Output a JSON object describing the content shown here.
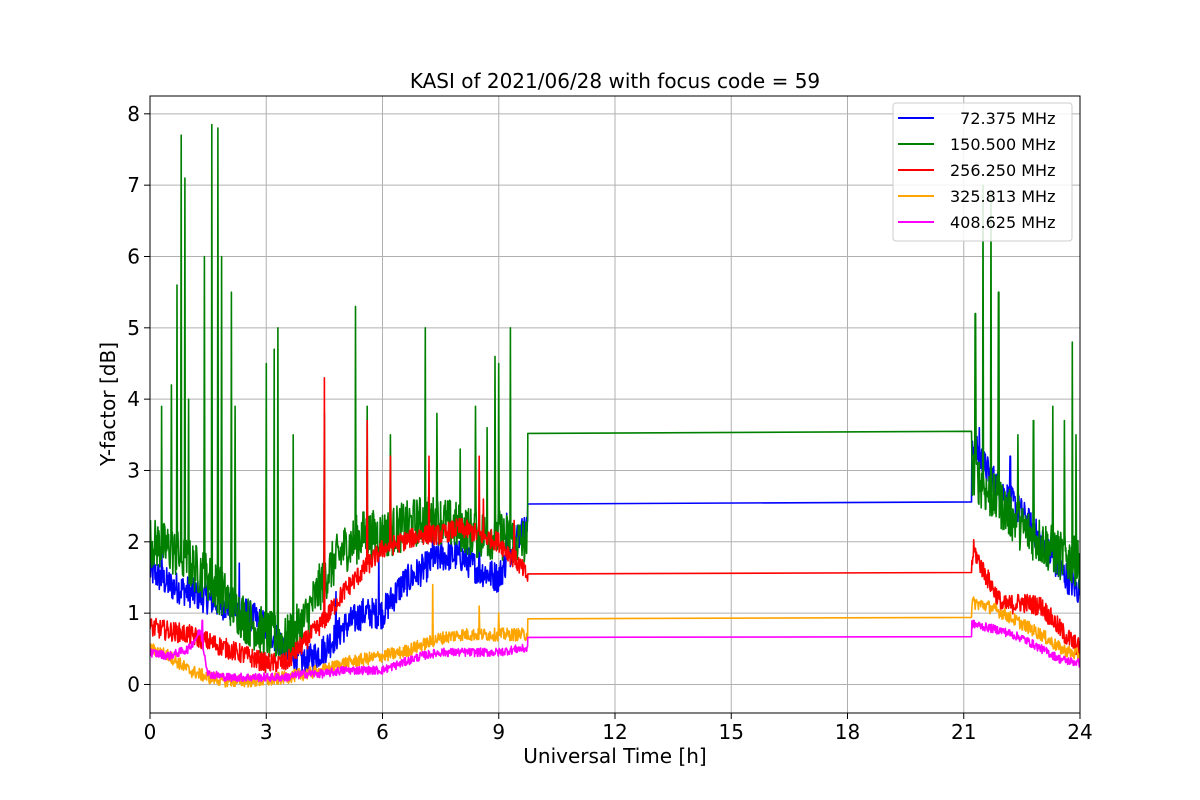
{
  "chart_data": {
    "type": "line",
    "title": "KASI of 2021/06/28 with focus code = 59",
    "xlabel": "Universal Time [h]",
    "ylabel": "Y-factor [dB]",
    "xlim": [
      0,
      24
    ],
    "ylim": [
      -0.4,
      8.25
    ],
    "xticks": [
      0,
      3,
      6,
      9,
      12,
      15,
      18,
      21,
      24
    ],
    "yticks": [
      0,
      1,
      2,
      3,
      4,
      5,
      6,
      7,
      8
    ],
    "grid": true,
    "legend_position": "top-right",
    "series": [
      {
        "name": "72.375 MHz",
        "legend_label": "  72.375 MHz",
        "color": "#0000ff",
        "points": [
          [
            0,
            1.6
          ],
          [
            0.5,
            1.4
          ],
          [
            1,
            1.3
          ],
          [
            1.5,
            1.2
          ],
          [
            2,
            1.1
          ],
          [
            2.5,
            1.0
          ],
          [
            3,
            0.8
          ],
          [
            3.5,
            0.5
          ],
          [
            4,
            0.3
          ],
          [
            4.5,
            0.5
          ],
          [
            5,
            0.8
          ],
          [
            5.5,
            1.0
          ],
          [
            6,
            1.0
          ],
          [
            6.5,
            1.4
          ],
          [
            7,
            1.6
          ],
          [
            7.5,
            1.8
          ],
          [
            8,
            1.8
          ],
          [
            8.5,
            1.6
          ],
          [
            9,
            1.5
          ],
          [
            9.5,
            2.1
          ],
          [
            9.75,
            2.2
          ],
          [
            9.76,
            2.53
          ],
          [
            21.2,
            2.56
          ],
          [
            21.21,
            3.4
          ],
          [
            21.6,
            3.0
          ],
          [
            22,
            2.7
          ],
          [
            22.5,
            2.4
          ],
          [
            23,
            2.0
          ],
          [
            23.5,
            1.6
          ],
          [
            24,
            1.3
          ]
        ],
        "spikes": [
          [
            0.3,
            1.9
          ],
          [
            2.3,
            1.7
          ],
          [
            3.3,
            1.4
          ],
          [
            4.8,
            1.3
          ],
          [
            5.9,
            1.9
          ],
          [
            7.3,
            2.2
          ],
          [
            8.5,
            2.0
          ],
          [
            9.2,
            2.4
          ],
          [
            21.4,
            3.6
          ],
          [
            22.2,
            3.2
          ],
          [
            23.3,
            2.6
          ]
        ],
        "noise": 0.22
      },
      {
        "name": "150.500 MHz",
        "legend_label": "150.500 MHz",
        "color": "#008000",
        "points": [
          [
            0,
            2.0
          ],
          [
            0.5,
            1.9
          ],
          [
            1,
            1.7
          ],
          [
            1.5,
            1.5
          ],
          [
            2,
            1.2
          ],
          [
            2.5,
            0.9
          ],
          [
            3,
            0.7
          ],
          [
            3.5,
            0.6
          ],
          [
            4,
            0.9
          ],
          [
            4.5,
            1.5
          ],
          [
            5,
            1.9
          ],
          [
            5.5,
            2.1
          ],
          [
            6,
            2.1
          ],
          [
            6.5,
            2.2
          ],
          [
            7,
            2.3
          ],
          [
            7.5,
            2.3
          ],
          [
            8,
            2.2
          ],
          [
            8.5,
            2.1
          ],
          [
            9,
            2.1
          ],
          [
            9.5,
            2.0
          ],
          [
            9.75,
            2.0
          ],
          [
            9.76,
            3.52
          ],
          [
            21.2,
            3.55
          ],
          [
            21.21,
            3.0
          ],
          [
            21.6,
            2.7
          ],
          [
            22,
            2.5
          ],
          [
            22.5,
            2.2
          ],
          [
            23,
            2.0
          ],
          [
            23.5,
            1.8
          ],
          [
            24,
            1.7
          ]
        ],
        "spikes": [
          [
            0.3,
            3.9
          ],
          [
            0.55,
            4.2
          ],
          [
            0.7,
            5.6
          ],
          [
            0.8,
            7.7
          ],
          [
            0.9,
            7.1
          ],
          [
            1.0,
            4.0
          ],
          [
            1.4,
            6.0
          ],
          [
            1.6,
            7.85
          ],
          [
            1.75,
            7.8
          ],
          [
            1.85,
            6.0
          ],
          [
            2.1,
            5.5
          ],
          [
            2.2,
            3.9
          ],
          [
            3.0,
            4.5
          ],
          [
            3.2,
            4.7
          ],
          [
            3.3,
            5.0
          ],
          [
            3.7,
            3.5
          ],
          [
            4.5,
            3.8
          ],
          [
            5.3,
            5.3
          ],
          [
            5.6,
            3.9
          ],
          [
            6.2,
            3.5
          ],
          [
            7.1,
            5.0
          ],
          [
            7.4,
            3.8
          ],
          [
            8.0,
            3.3
          ],
          [
            8.4,
            3.9
          ],
          [
            8.7,
            3.6
          ],
          [
            8.9,
            4.6
          ],
          [
            9.0,
            4.5
          ],
          [
            9.3,
            5.0
          ],
          [
            21.3,
            5.2
          ],
          [
            21.5,
            7.0
          ],
          [
            21.7,
            6.9
          ],
          [
            21.9,
            5.5
          ],
          [
            22.4,
            3.5
          ],
          [
            22.8,
            3.7
          ],
          [
            23.3,
            3.9
          ],
          [
            23.6,
            3.7
          ],
          [
            23.8,
            4.8
          ],
          [
            23.9,
            3.5
          ]
        ],
        "noise": 0.35
      },
      {
        "name": "256.250 MHz",
        "legend_label": "256.250 MHz",
        "color": "#ff0000",
        "points": [
          [
            0,
            0.8
          ],
          [
            0.5,
            0.75
          ],
          [
            1,
            0.7
          ],
          [
            1.5,
            0.6
          ],
          [
            2,
            0.5
          ],
          [
            2.5,
            0.4
          ],
          [
            3,
            0.3
          ],
          [
            3.5,
            0.3
          ],
          [
            4,
            0.6
          ],
          [
            4.5,
            0.9
          ],
          [
            5,
            1.3
          ],
          [
            5.5,
            1.6
          ],
          [
            6,
            1.9
          ],
          [
            6.5,
            2.0
          ],
          [
            7,
            2.1
          ],
          [
            7.5,
            2.1
          ],
          [
            8,
            2.2
          ],
          [
            8.5,
            2.1
          ],
          [
            9,
            2.0
          ],
          [
            9.5,
            1.7
          ],
          [
            9.75,
            1.5
          ],
          [
            9.76,
            1.55
          ],
          [
            21.2,
            1.57
          ],
          [
            21.25,
            1.9
          ],
          [
            21.5,
            1.6
          ],
          [
            21.8,
            1.3
          ],
          [
            22,
            1.1
          ],
          [
            22.5,
            1.15
          ],
          [
            23,
            1.1
          ],
          [
            23.3,
            0.9
          ],
          [
            23.6,
            0.7
          ],
          [
            24,
            0.5
          ]
        ],
        "spikes": [
          [
            4.5,
            4.3
          ],
          [
            5.6,
            3.7
          ],
          [
            6.2,
            3.2
          ],
          [
            7.2,
            3.2
          ],
          [
            8.5,
            3.2
          ],
          [
            8.6,
            2.6
          ],
          [
            9.4,
            2.3
          ]
        ],
        "noise": 0.14
      },
      {
        "name": "325.813 MHz",
        "legend_label": "325.813 MHz",
        "color": "#ffa500",
        "points": [
          [
            0,
            0.5
          ],
          [
            0.5,
            0.4
          ],
          [
            1,
            0.2
          ],
          [
            1.5,
            0.1
          ],
          [
            2,
            0.05
          ],
          [
            3,
            0.05
          ],
          [
            3.5,
            0.1
          ],
          [
            4,
            0.15
          ],
          [
            4.5,
            0.2
          ],
          [
            5,
            0.3
          ],
          [
            5.5,
            0.35
          ],
          [
            6,
            0.4
          ],
          [
            6.5,
            0.45
          ],
          [
            7,
            0.55
          ],
          [
            7.5,
            0.65
          ],
          [
            8,
            0.7
          ],
          [
            8.5,
            0.7
          ],
          [
            9,
            0.7
          ],
          [
            9.5,
            0.7
          ],
          [
            9.75,
            0.7
          ],
          [
            9.76,
            0.92
          ],
          [
            21.2,
            0.94
          ],
          [
            21.21,
            1.15
          ],
          [
            21.6,
            1.1
          ],
          [
            22,
            1.0
          ],
          [
            22.5,
            0.85
          ],
          [
            23,
            0.7
          ],
          [
            23.5,
            0.5
          ],
          [
            24,
            0.4
          ]
        ],
        "spikes": [
          [
            7.3,
            1.4
          ],
          [
            8.5,
            1.1
          ],
          [
            9.0,
            1.0
          ]
        ],
        "noise": 0.09
      },
      {
        "name": "408.625 MHz",
        "legend_label": "408.625 MHz",
        "color": "#ff00ff",
        "points": [
          [
            0,
            0.45
          ],
          [
            0.5,
            0.4
          ],
          [
            1,
            0.5
          ],
          [
            1.3,
            0.75
          ],
          [
            1.5,
            0.15
          ],
          [
            2,
            0.1
          ],
          [
            3,
            0.1
          ],
          [
            3.5,
            0.1
          ],
          [
            4,
            0.15
          ],
          [
            4.5,
            0.15
          ],
          [
            5,
            0.2
          ],
          [
            5.5,
            0.2
          ],
          [
            6,
            0.2
          ],
          [
            6.5,
            0.3
          ],
          [
            7,
            0.4
          ],
          [
            7.5,
            0.45
          ],
          [
            8,
            0.45
          ],
          [
            8.5,
            0.45
          ],
          [
            9,
            0.45
          ],
          [
            9.5,
            0.5
          ],
          [
            9.75,
            0.5
          ],
          [
            9.76,
            0.66
          ],
          [
            21.2,
            0.67
          ],
          [
            21.21,
            0.85
          ],
          [
            21.6,
            0.8
          ],
          [
            22,
            0.75
          ],
          [
            22.5,
            0.65
          ],
          [
            23,
            0.5
          ],
          [
            23.5,
            0.35
          ],
          [
            24,
            0.3
          ]
        ],
        "spikes": [
          [
            1.35,
            0.9
          ]
        ],
        "noise": 0.06
      }
    ]
  }
}
